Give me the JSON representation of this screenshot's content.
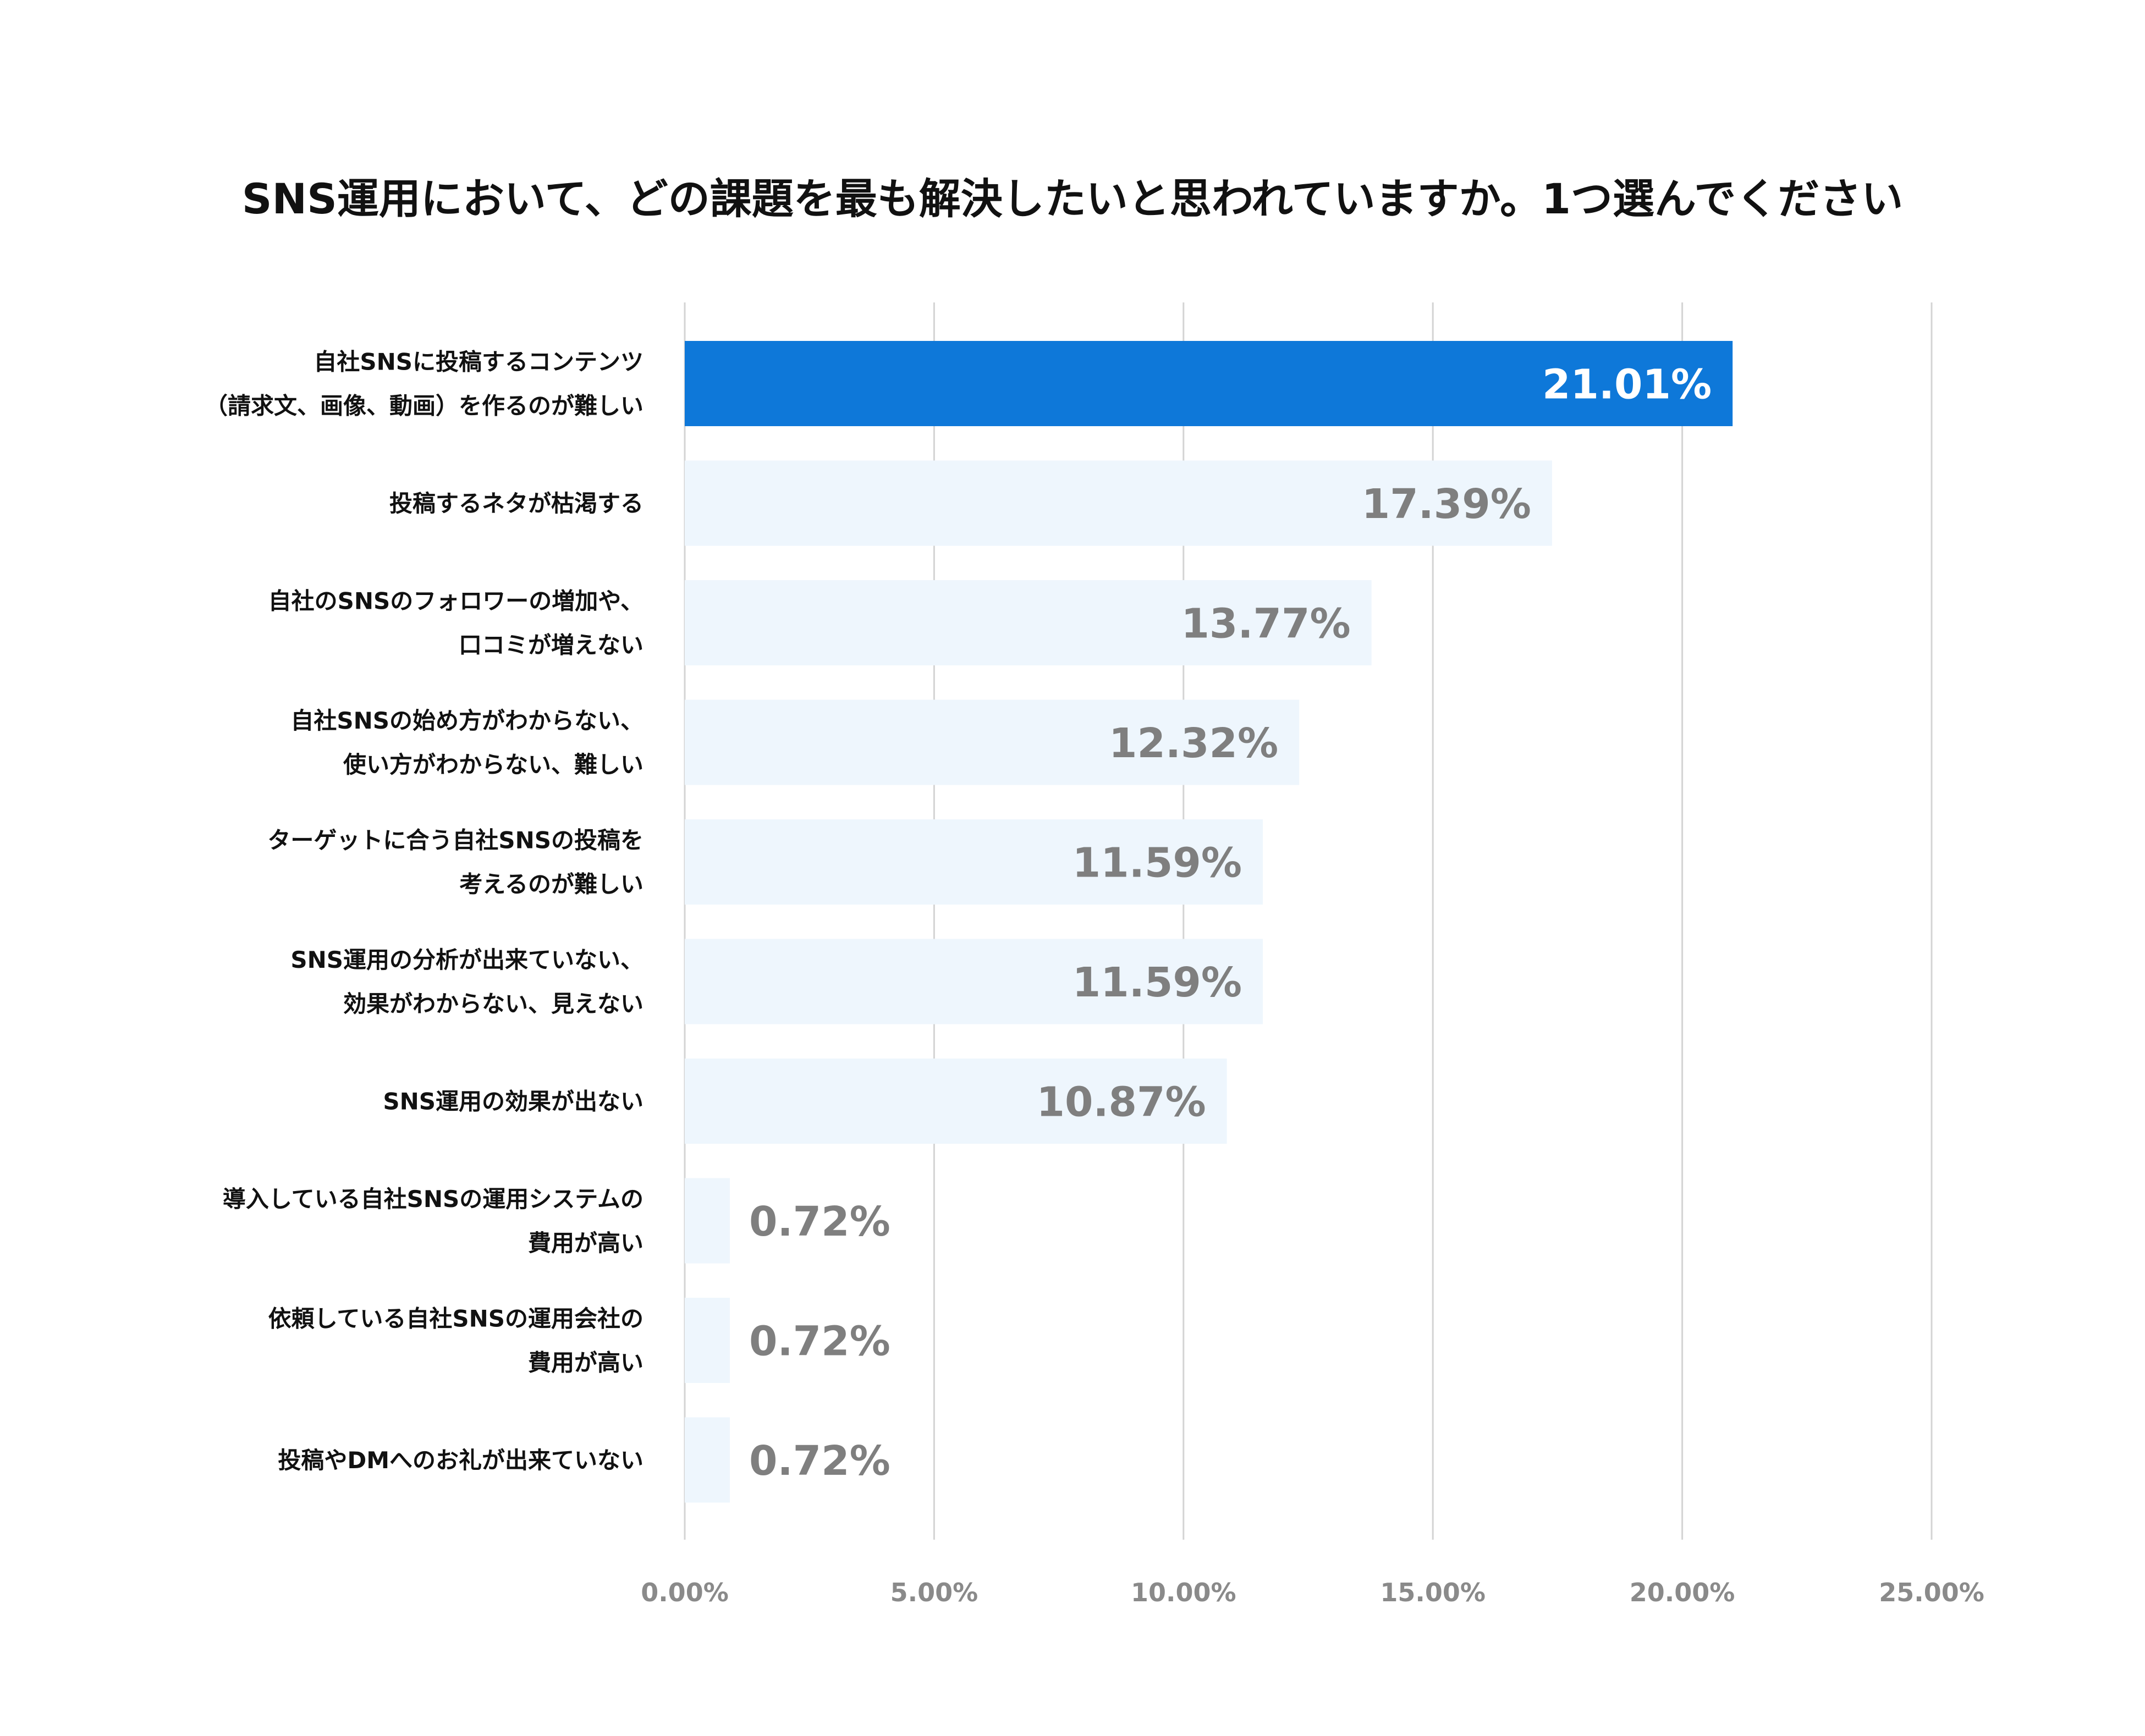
{
  "chart_data": {
    "type": "bar",
    "orientation": "horizontal",
    "title": "SNS運用において、どの課題を最も解決したいと思われていますか。1つ選んでください",
    "categories": [
      [
        "自社SNSに投稿するコンテンツ",
        "（請求文、画像、動画）を作るのが難しい"
      ],
      [
        "投稿するネタが枯渇する"
      ],
      [
        "自社のSNSのフォロワーの増加や、",
        "口コミが増えない"
      ],
      [
        "自社SNSの始め方がわからない、",
        "使い方がわからない、難しい"
      ],
      [
        "ターゲットに合う自社SNSの投稿を",
        "考えるのが難しい"
      ],
      [
        "SNS運用の分析が出来ていない、",
        "効果がわからない、見えない"
      ],
      [
        "SNS運用の効果が出ない"
      ],
      [
        "導入している自社SNSの運用システムの",
        "費用が高い"
      ],
      [
        "依頼している自社SNSの運用会社の",
        "費用が高い"
      ],
      [
        "投稿やDMへのお礼が出来ていない"
      ]
    ],
    "values": [
      21.01,
      17.39,
      13.77,
      12.32,
      11.59,
      11.59,
      10.87,
      0.72,
      0.72,
      0.72
    ],
    "value_labels": [
      "21.01%",
      "17.39%",
      "13.77%",
      "12.32%",
      "11.59%",
      "11.59%",
      "10.87%",
      "0.72%",
      "0.72%",
      "0.72%"
    ],
    "xlim": [
      0,
      25
    ],
    "xticks": [
      0,
      5,
      10,
      15,
      20,
      25
    ],
    "xtick_labels": [
      "0.00%",
      "5.00%",
      "10.00%",
      "15.00%",
      "20.00%",
      "25.00%"
    ],
    "grid": true,
    "xlabel": "",
    "ylabel": "",
    "colors": {
      "highlight": "#0e78d9",
      "bar": "#eef6fd",
      "highlight_text": "#ffffff",
      "value_text": "#7f7f7f",
      "grid": "#d4d4d4"
    }
  }
}
